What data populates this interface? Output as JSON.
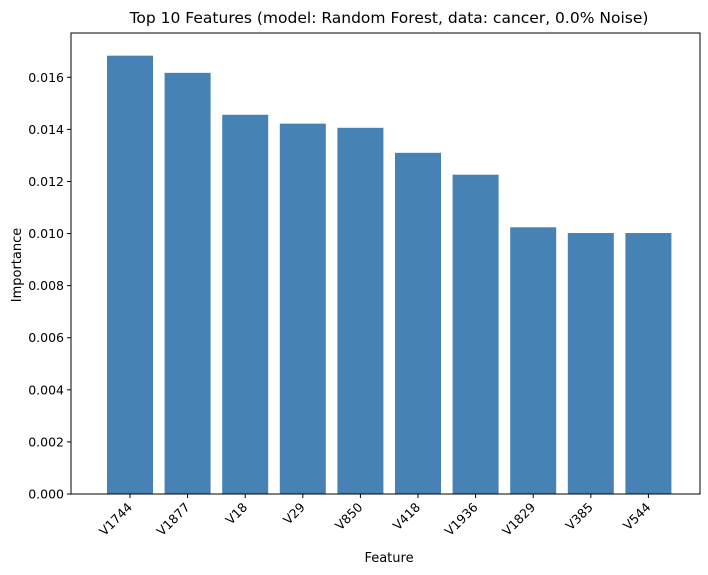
{
  "chart_data": {
    "type": "bar",
    "title": "Top 10 Features (model: Random Forest, data: cancer, 0.0% Noise)",
    "xlabel": "Feature",
    "ylabel": "Importance",
    "categories": [
      "V1744",
      "V1877",
      "V18",
      "V29",
      "V850",
      "V418",
      "V1936",
      "V1829",
      "V385",
      "V544"
    ],
    "values": [
      0.01683,
      0.01617,
      0.01456,
      0.01422,
      0.01406,
      0.0131,
      0.01226,
      0.01024,
      0.01002,
      0.01002
    ],
    "ylim": [
      0,
      0.0177
    ],
    "yticks": [
      "0.000",
      "0.002",
      "0.004",
      "0.006",
      "0.008",
      "0.010",
      "0.012",
      "0.014",
      "0.016"
    ],
    "bar_color": "#4682B4",
    "grid": false
  }
}
